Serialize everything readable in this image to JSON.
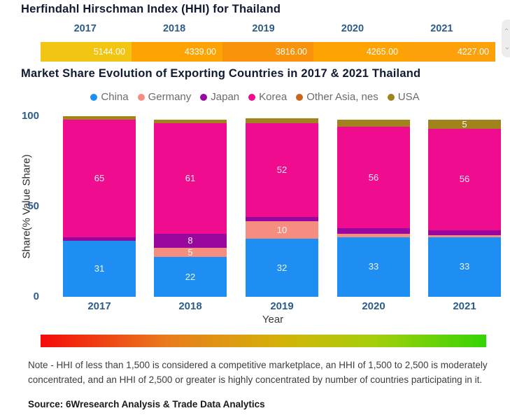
{
  "hhi": {
    "title": "Herfindahl Hirschman Index (HHI) for Thailand",
    "years": [
      "2017",
      "2018",
      "2019",
      "2020",
      "2021"
    ],
    "values": [
      "5144.00",
      "4339.00",
      "3816.00",
      "4265.00",
      "4227.00"
    ],
    "cell_colors": [
      "#f2c512",
      "#fda303",
      "#f8930b",
      "#fda303",
      "#fca10a"
    ],
    "year_color": "#2e5c8a"
  },
  "market": {
    "title": "Market Share Evolution of Exporting Countries in 2017 & 2021 Thailand"
  },
  "chart_data": {
    "type": "bar",
    "stacked": true,
    "percent_stack": true,
    "categories": [
      "2017",
      "2018",
      "2019",
      "2020",
      "2021"
    ],
    "series": [
      {
        "name": "China",
        "color": "#1e8ef2",
        "values": [
          31,
          22,
          32,
          33,
          33
        ]
      },
      {
        "name": "Germany",
        "color": "#f58e80",
        "values": [
          0,
          5,
          10,
          2,
          1
        ]
      },
      {
        "name": "Japan",
        "color": "#97079d",
        "values": [
          2,
          8,
          2,
          3,
          3
        ]
      },
      {
        "name": "Korea",
        "color": "#ef0c8e",
        "values": [
          65,
          61,
          52,
          56,
          56
        ]
      },
      {
        "name": "Other Asia, nes",
        "color": "#c9661c",
        "values": [
          0,
          0,
          0,
          0,
          0
        ]
      },
      {
        "name": "USA",
        "color": "#a1831e",
        "values": [
          2,
          2,
          3,
          4,
          5
        ]
      }
    ],
    "ylabel": "Share(% Value Share)",
    "xlabel": "Year",
    "yticks": [
      0,
      50,
      100
    ],
    "ylim": [
      0,
      100
    ],
    "label_min_value_shown": 5,
    "legend_position": "top",
    "grid": false
  },
  "gradient_scale": {
    "left_color": "#f40b0b",
    "right_color": "#35d406"
  },
  "side_widget": {
    "icons": [
      "chevron-up-icon",
      "chevron-down-icon"
    ]
  },
  "note": {
    "text": "Note - HHI of less than 1,500 is considered a competitive marketplace, an HHI of 1,500 to 2,500 is moderately concentrated, and an HHI of 2,500 or greater is highly concentrated by number of countries participating in it."
  },
  "source": {
    "text": "Source: 6Wresearch Analysis & Trade Data Analytics"
  }
}
